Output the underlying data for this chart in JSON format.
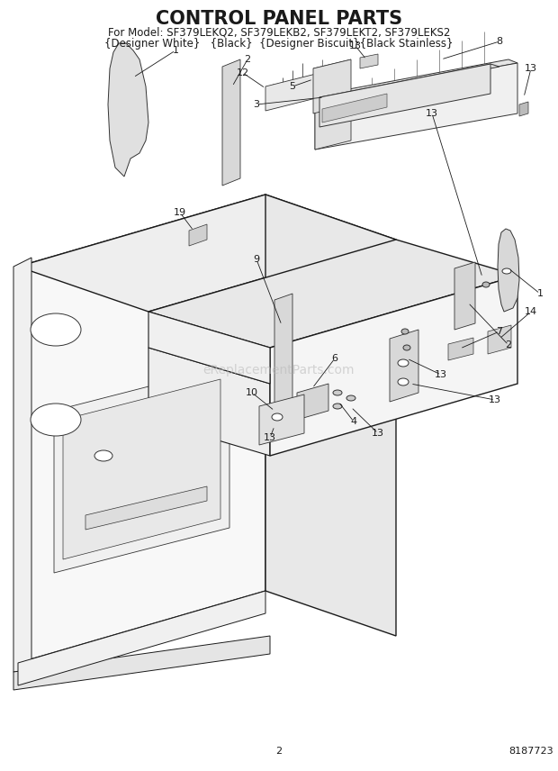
{
  "title": "CONTROL PANEL PARTS",
  "subtitle1": "For Model: SF379LEKQ2, SF379LEKB2, SF379LEKT2, SF379LEKS2",
  "subtitle2": "{Designer White}   {Black}  {Designer Biscuit}{Black Stainless}",
  "page_number": "2",
  "part_number": "8187723",
  "background_color": "#ffffff",
  "line_color": "#1a1a1a",
  "watermark_text": "eReplacementParts.com",
  "watermark_color": "#bbbbbb",
  "title_fontsize": 15,
  "subtitle_fontsize": 8.5,
  "label_fontsize": 8,
  "footer_fontsize": 8
}
